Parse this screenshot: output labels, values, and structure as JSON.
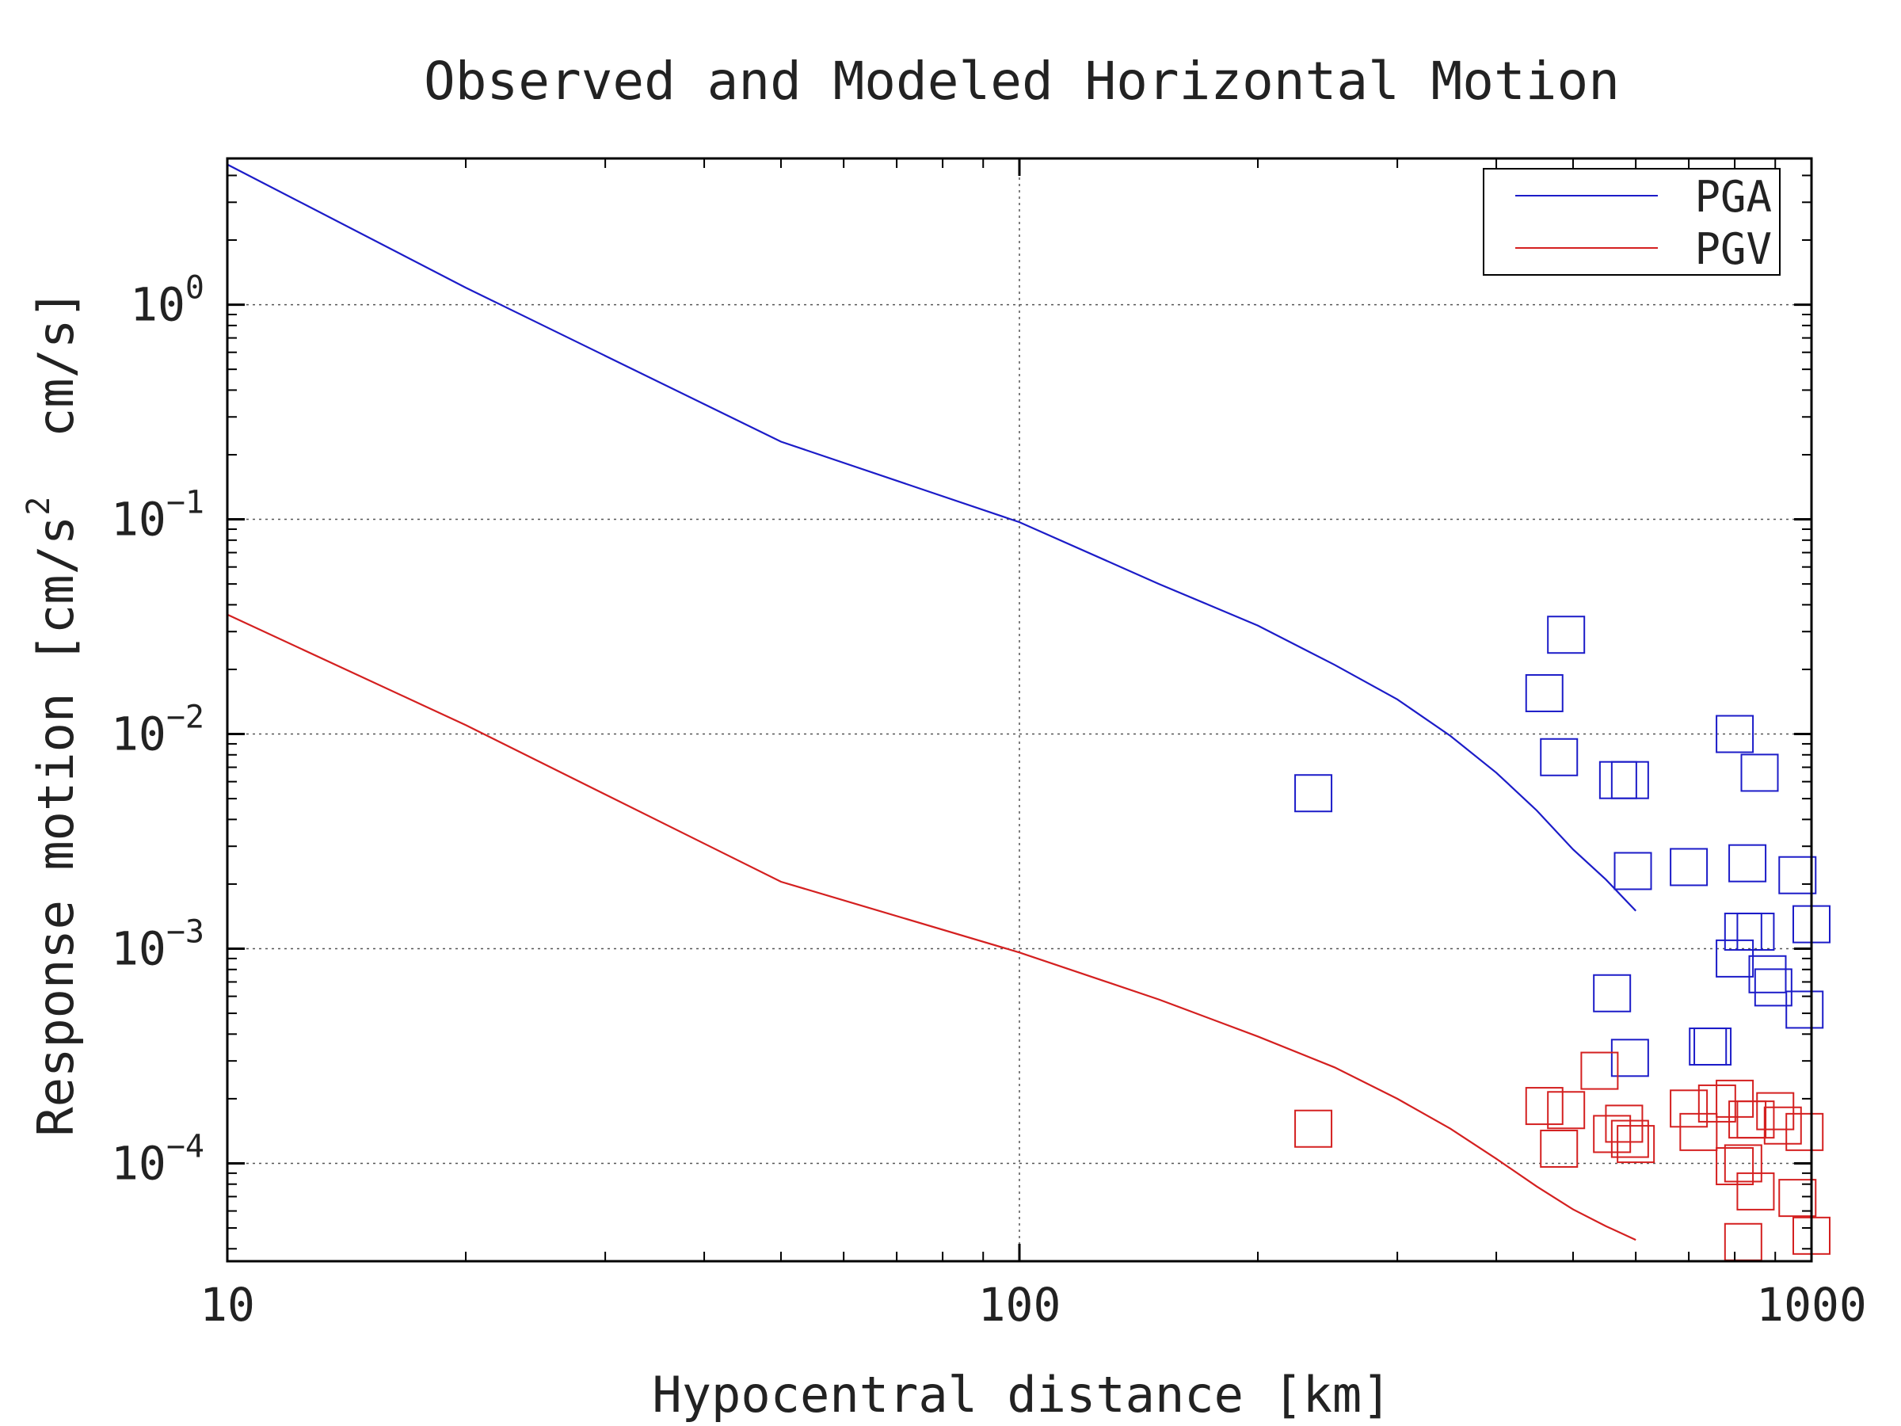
{
  "chart_data": {
    "type": "scatter",
    "title": "Observed and Modeled Horizontal Motion",
    "xlabel": "Hypocentral distance [km]",
    "ylabel": "Response motion [cm/s2 cm/s]",
    "ylabel_parts": {
      "pre": "Response motion [cm/s",
      "sup": "2",
      "post": "  cm/s]"
    },
    "x_scale": "log",
    "y_scale": "log",
    "xlim": [
      10,
      1000
    ],
    "ylim": [
      3.5e-05,
      4.8
    ],
    "grid": true,
    "x_ticks": [
      {
        "value": 10,
        "label": "10"
      },
      {
        "value": 100,
        "label": "100"
      },
      {
        "value": 1000,
        "label": "1000"
      }
    ],
    "y_ticks": [
      {
        "value": 0.0001,
        "base": "10",
        "exp": "−4"
      },
      {
        "value": 0.001,
        "base": "10",
        "exp": "−3"
      },
      {
        "value": 0.01,
        "base": "10",
        "exp": "−2"
      },
      {
        "value": 0.1,
        "base": "10",
        "exp": "−1"
      },
      {
        "value": 1,
        "base": "10",
        "exp": "0"
      }
    ],
    "legend_position": "top-right",
    "series": [
      {
        "name": "PGA",
        "color": "#1c1cc8",
        "line": {
          "x": [
            10,
            20,
            50,
            100,
            150,
            200,
            250,
            300,
            350,
            400,
            450,
            500,
            550,
            600
          ],
          "y": [
            4.5,
            1.2,
            0.23,
            0.097,
            0.05,
            0.032,
            0.021,
            0.0145,
            0.0098,
            0.0066,
            0.0044,
            0.0029,
            0.0021,
            0.0015
          ]
        },
        "points": {
          "x": [
            235,
            460,
            490,
            480,
            570,
            590,
            595,
            700,
            800,
            830,
            860,
            960,
            1000,
            820,
            850,
            800,
            880,
            895,
            980,
            560,
            740,
            750,
            590
          ],
          "y": [
            0.0053,
            0.0155,
            0.029,
            0.0078,
            0.0061,
            0.0061,
            0.0023,
            0.0024,
            0.01,
            0.0025,
            0.0066,
            0.0022,
            0.0013,
            0.0012,
            0.0012,
            0.0009,
            0.00076,
            0.00066,
            0.00052,
            0.00062,
            0.00035,
            0.00035,
            0.00031
          ]
        }
      },
      {
        "name": "PGV",
        "color": "#d42020",
        "line": {
          "x": [
            10,
            20,
            50,
            100,
            150,
            200,
            250,
            300,
            350,
            400,
            450,
            500,
            550,
            600
          ],
          "y": [
            0.036,
            0.011,
            0.00205,
            0.00096,
            0.00058,
            0.00039,
            0.00028,
            0.0002,
            0.000145,
            0.000105,
            7.8e-05,
            6.1e-05,
            5.1e-05,
            4.4e-05
          ]
        },
        "points": {
          "x": [
            235,
            460,
            490,
            480,
            540,
            560,
            580,
            590,
            600,
            700,
            720,
            760,
            800,
            820,
            830,
            850,
            900,
            920,
            980,
            800,
            850,
            960,
            820,
            1000
          ],
          "y": [
            0.000145,
            0.000185,
            0.000177,
            0.000117,
            0.00027,
            0.000137,
            0.000153,
            0.00013,
            0.000123,
            0.00018,
            0.00014,
            0.00019,
            0.0002,
            0.0001,
            0.00016,
            0.00016,
            0.000175,
            0.00015,
            0.00014,
            9.7e-05,
            7.4e-05,
            6.9e-05,
            4.3e-05,
            4.6e-05
          ]
        }
      }
    ]
  }
}
